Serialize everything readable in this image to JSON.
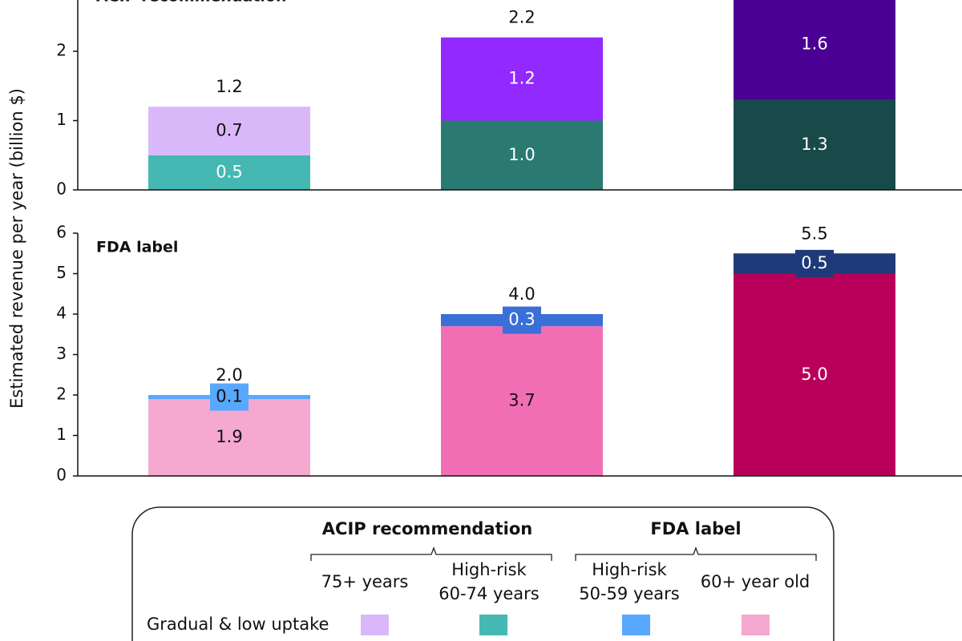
{
  "y_label": "Estimated revenue per year (billion $)",
  "chart_data": [
    {
      "type": "bar",
      "stacked": true,
      "title": "ACIP recommendation",
      "categories": [
        null,
        null,
        null
      ],
      "ylim": [
        0,
        2.74
      ],
      "yticks": [
        0,
        1,
        2
      ],
      "series": [
        {
          "colors": [
            "#45b8b4",
            "#2a7a72",
            "#174a48"
          ],
          "values": [
            0.5,
            1.0,
            1.3
          ],
          "value_labels": [
            "0.5",
            "1.0",
            "1.3"
          ]
        },
        {
          "colors": [
            "#d9b8fa",
            "#9229ff",
            "#4a0094"
          ],
          "values": [
            0.7,
            1.2,
            1.6
          ],
          "value_labels": [
            "0.7",
            "1.2",
            "1.6"
          ]
        }
      ],
      "totals": [
        1.2,
        2.2,
        null
      ],
      "total_labels": [
        "1.2",
        "2.2",
        null
      ]
    },
    {
      "type": "bar",
      "stacked": true,
      "title": "FDA label",
      "categories": [
        null,
        null,
        null
      ],
      "ylim": [
        0,
        6
      ],
      "yticks": [
        0,
        1,
        2,
        3,
        4,
        5,
        6
      ],
      "series": [
        {
          "colors": [
            "#f5a8d0",
            "#f26eb4",
            "#b8005a"
          ],
          "values": [
            1.9,
            3.7,
            5.0
          ],
          "value_labels": [
            "1.9",
            "3.7",
            "5.0"
          ]
        },
        {
          "colors": [
            "#58a8ff",
            "#3a6fd8",
            "#1e3a78"
          ],
          "values": [
            0.1,
            0.3,
            0.5
          ],
          "value_labels": [
            "0.1",
            "0.3",
            "0.5"
          ]
        }
      ],
      "totals": [
        2.0,
        4.0,
        5.5
      ],
      "total_labels": [
        "2.0",
        "4.0",
        "5.5"
      ]
    }
  ],
  "legend": {
    "groups": [
      {
        "title": "ACIP recommendation",
        "items": [
          [
            "75+ years"
          ],
          [
            "High-risk",
            "60-74 years"
          ]
        ]
      },
      {
        "title": "FDA label",
        "items": [
          [
            "High-risk",
            "50-59 years"
          ],
          [
            "60+ year old"
          ]
        ]
      }
    ],
    "rows": [
      {
        "label": "Gradual & low uptake",
        "colors": [
          "#d9b8fa",
          "#45b8b4",
          "#58a8ff",
          "#f5a8d0"
        ]
      }
    ]
  }
}
